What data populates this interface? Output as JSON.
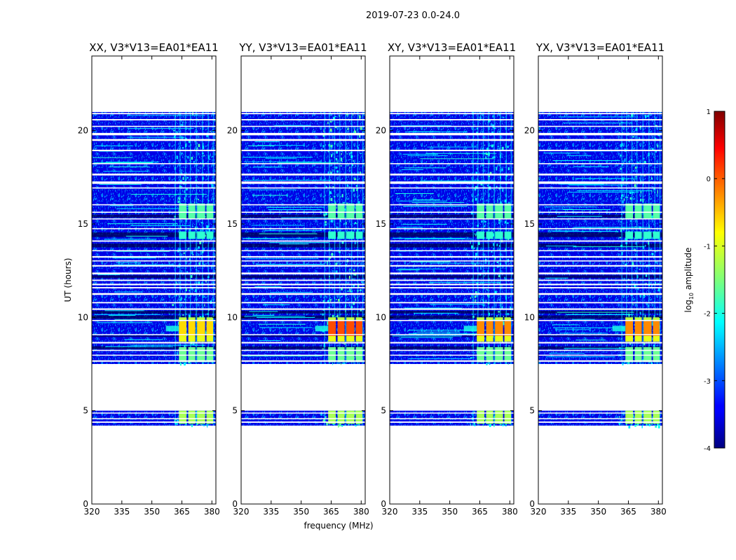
{
  "figure": {
    "suptitle": "2019-07-23 0.0-24.0",
    "xlabel": "frequency (MHz)",
    "ylabel": "UT (hours)"
  },
  "colorbar": {
    "label_prefix": "log",
    "label_sub": "10",
    "label_suffix": " amplitude",
    "range": [
      -4,
      1
    ],
    "ticks": [
      -4,
      -3,
      -2,
      -1,
      0,
      1
    ],
    "colormap": "jet"
  },
  "chart_data": [
    {
      "type": "heatmap",
      "title": "XX, V3*V13=EA01*EA11",
      "xlabel": "",
      "ylabel": "UT (hours)",
      "xlim": [
        320,
        382
      ],
      "ylim": [
        0,
        24
      ],
      "xticks": [
        320,
        335,
        350,
        365,
        380
      ],
      "yticks": [
        0,
        5,
        10,
        15,
        20
      ],
      "value_unit": "log10 amplitude",
      "time_coverage_hours": [
        [
          4.2,
          5.0
        ],
        [
          7.5,
          21.0
        ]
      ],
      "bright_band_MHz": [
        360,
        380
      ],
      "peak_window_hours": [
        9.0,
        9.8
      ],
      "peak_log10_amplitude": -0.7
    },
    {
      "type": "heatmap",
      "title": "YY, V3*V13=EA01*EA11",
      "xlabel": "frequency (MHz)",
      "ylabel": "",
      "xlim": [
        320,
        382
      ],
      "ylim": [
        0,
        24
      ],
      "xticks": [
        320,
        335,
        350,
        365,
        380
      ],
      "yticks": [
        0,
        5,
        10,
        15,
        20
      ],
      "value_unit": "log10 amplitude",
      "time_coverage_hours": [
        [
          4.2,
          5.0
        ],
        [
          7.5,
          21.0
        ]
      ],
      "bright_band_MHz": [
        360,
        380
      ],
      "peak_window_hours": [
        9.0,
        9.8
      ],
      "peak_log10_amplitude": 0.0
    },
    {
      "type": "heatmap",
      "title": "XY, V3*V13=EA01*EA11",
      "xlabel": "",
      "ylabel": "",
      "xlim": [
        320,
        382
      ],
      "ylim": [
        0,
        24
      ],
      "xticks": [
        320,
        335,
        350,
        365,
        380
      ],
      "yticks": [
        0,
        5,
        10,
        15,
        20
      ],
      "value_unit": "log10 amplitude",
      "time_coverage_hours": [
        [
          4.2,
          5.0
        ],
        [
          7.5,
          21.0
        ]
      ],
      "bright_band_MHz": [
        360,
        380
      ],
      "peak_window_hours": [
        9.0,
        9.8
      ],
      "peak_log10_amplitude": -0.3
    },
    {
      "type": "heatmap",
      "title": "YX, V3*V13=EA01*EA11",
      "xlabel": "",
      "ylabel": "",
      "xlim": [
        320,
        382
      ],
      "ylim": [
        0,
        24
      ],
      "xticks": [
        320,
        335,
        350,
        365,
        380
      ],
      "yticks": [
        0,
        5,
        10,
        15,
        20
      ],
      "value_unit": "log10 amplitude",
      "time_coverage_hours": [
        [
          4.2,
          5.0
        ],
        [
          7.5,
          21.0
        ]
      ],
      "bright_band_MHz": [
        360,
        380
      ],
      "peak_window_hours": [
        9.0,
        9.8
      ],
      "peak_log10_amplitude": -0.3
    }
  ]
}
